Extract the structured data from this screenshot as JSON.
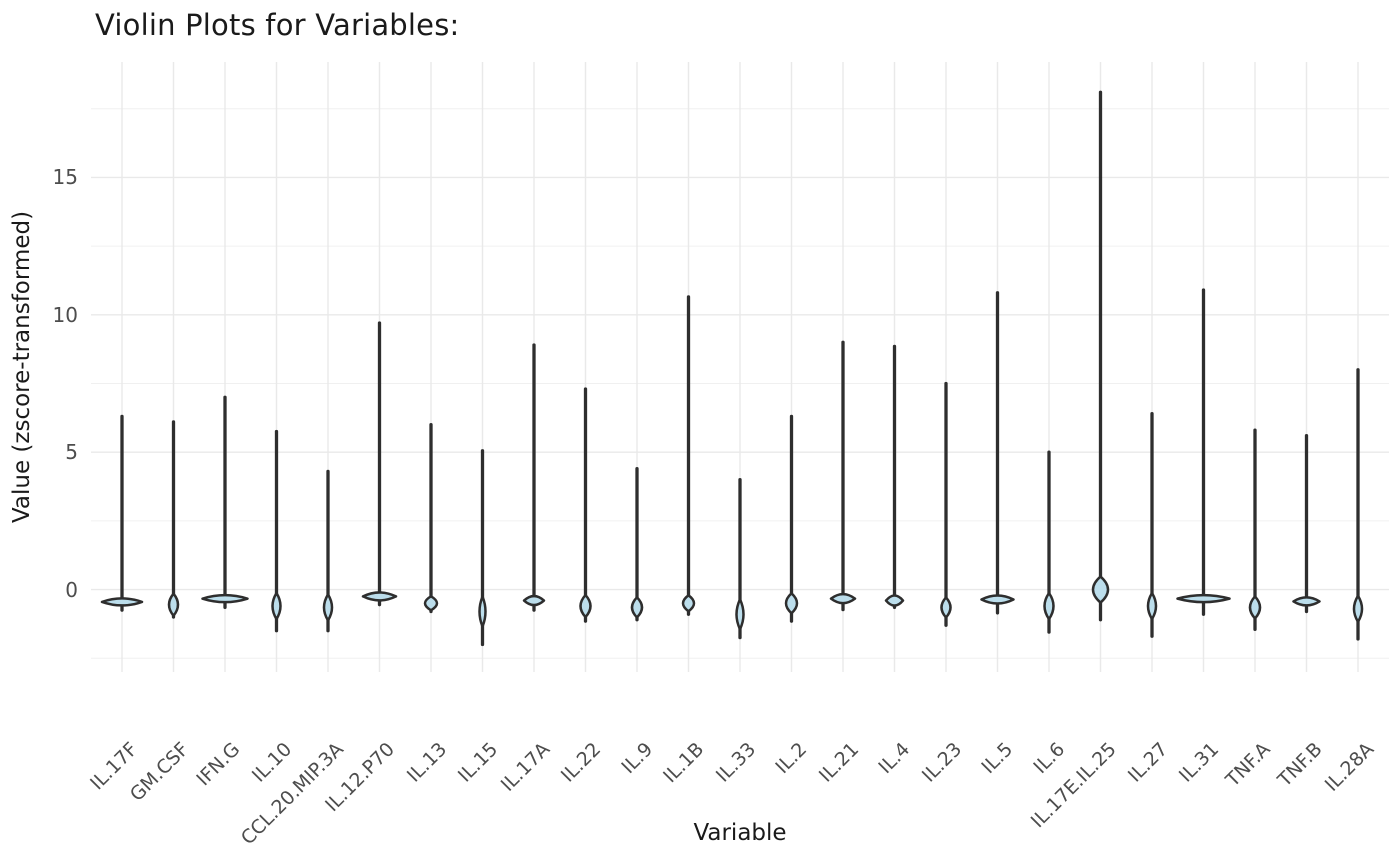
{
  "page": {
    "title": "Violin Plots for Variables:"
  },
  "colors": {
    "background": "#ffffff",
    "violin_outline": "#2e2e2e",
    "violin_fill": "#bcdeec",
    "grid_major": "#e9e9e9",
    "grid_minor": "#f0f0f0",
    "tick_label": "#4d4d4d",
    "axis_title": "#1a1a1a"
  },
  "chart_data": {
    "type": "violin",
    "title": "Violin Plots for Variables:",
    "xlabel": "Variable",
    "ylabel": "Value (zscore-transformed)",
    "ylim": [
      -3.0,
      19.2
    ],
    "yticks_major": [
      0,
      5,
      10,
      15
    ],
    "yticks_minor": [
      -2.5,
      2.5,
      7.5,
      12.5,
      17.5
    ],
    "grid": true,
    "legend": false,
    "x_label_angle_deg": 45,
    "categories": [
      "IL.17F",
      "GM.CSF",
      "IFN.G",
      "IL.10",
      "CCL.20.MIP.3A",
      "IL.12.P70",
      "IL.13",
      "IL.15",
      "IL.17A",
      "IL.22",
      "IL.9",
      "IL.1B",
      "IL.33",
      "IL.2",
      "IL.21",
      "IL.4",
      "IL.23",
      "IL.5",
      "IL.6",
      "IL.17E.IL.25",
      "IL.27",
      "IL.31",
      "TNF.A",
      "TNF.B",
      "IL.28A"
    ],
    "violins": [
      {
        "name": "IL.17F",
        "max": 6.3,
        "mode": -0.45,
        "min": -0.75,
        "bulge_w": 40,
        "bulge_h": 7
      },
      {
        "name": "GM.CSF",
        "max": 6.1,
        "mode": -0.55,
        "min": -1.0,
        "bulge_w": 9,
        "bulge_h": 22
      },
      {
        "name": "IFN.G",
        "max": 7.0,
        "mode": -0.33,
        "min": -0.65,
        "bulge_w": 45,
        "bulge_h": 7
      },
      {
        "name": "IL.10",
        "max": 5.75,
        "mode": -0.6,
        "min": -1.5,
        "bulge_w": 8,
        "bulge_h": 26
      },
      {
        "name": "CCL.20.MIP.3A",
        "max": 4.3,
        "mode": -0.65,
        "min": -1.5,
        "bulge_w": 8,
        "bulge_h": 26
      },
      {
        "name": "IL.12.P70",
        "max": 9.7,
        "mode": -0.25,
        "min": -0.55,
        "bulge_w": 33,
        "bulge_h": 8
      },
      {
        "name": "IL.13",
        "max": 6.0,
        "mode": -0.5,
        "min": -0.8,
        "bulge_w": 12,
        "bulge_h": 14
      },
      {
        "name": "IL.15",
        "max": 5.05,
        "mode": -0.8,
        "min": -2.0,
        "bulge_w": 6,
        "bulge_h": 30
      },
      {
        "name": "IL.17A",
        "max": 8.9,
        "mode": -0.4,
        "min": -0.75,
        "bulge_w": 20,
        "bulge_h": 9
      },
      {
        "name": "IL.22",
        "max": 7.3,
        "mode": -0.6,
        "min": -1.15,
        "bulge_w": 10,
        "bulge_h": 22
      },
      {
        "name": "IL.9",
        "max": 4.4,
        "mode": -0.65,
        "min": -1.1,
        "bulge_w": 10,
        "bulge_h": 20
      },
      {
        "name": "IL.1B",
        "max": 10.65,
        "mode": -0.5,
        "min": -0.9,
        "bulge_w": 11,
        "bulge_h": 16
      },
      {
        "name": "IL.33",
        "max": 4.0,
        "mode": -0.9,
        "min": -1.75,
        "bulge_w": 7,
        "bulge_h": 30
      },
      {
        "name": "IL.2",
        "max": 6.3,
        "mode": -0.5,
        "min": -1.15,
        "bulge_w": 11,
        "bulge_h": 20
      },
      {
        "name": "IL.21",
        "max": 9.0,
        "mode": -0.33,
        "min": -0.73,
        "bulge_w": 24,
        "bulge_h": 9
      },
      {
        "name": "IL.4",
        "max": 8.85,
        "mode": -0.4,
        "min": -0.65,
        "bulge_w": 17,
        "bulge_h": 10
      },
      {
        "name": "IL.23",
        "max": 7.5,
        "mode": -0.65,
        "min": -1.3,
        "bulge_w": 9,
        "bulge_h": 20
      },
      {
        "name": "IL.5",
        "max": 10.8,
        "mode": -0.36,
        "min": -0.85,
        "bulge_w": 32,
        "bulge_h": 8
      },
      {
        "name": "IL.6",
        "max": 5.0,
        "mode": -0.6,
        "min": -1.55,
        "bulge_w": 9,
        "bulge_h": 26
      },
      {
        "name": "IL.17E.IL.25",
        "max": 18.1,
        "mode": 0.0,
        "min": -1.1,
        "bulge_w": 15,
        "bulge_h": 26
      },
      {
        "name": "IL.27",
        "max": 6.4,
        "mode": -0.6,
        "min": -1.7,
        "bulge_w": 8,
        "bulge_h": 26
      },
      {
        "name": "IL.31",
        "max": 10.9,
        "mode": -0.33,
        "min": -0.9,
        "bulge_w": 52,
        "bulge_h": 7
      },
      {
        "name": "TNF.A",
        "max": 5.8,
        "mode": -0.65,
        "min": -1.45,
        "bulge_w": 10,
        "bulge_h": 22
      },
      {
        "name": "TNF.B",
        "max": 5.6,
        "mode": -0.43,
        "min": -0.8,
        "bulge_w": 26,
        "bulge_h": 8
      },
      {
        "name": "IL.28A",
        "max": 8.0,
        "mode": -0.7,
        "min": -1.8,
        "bulge_w": 8,
        "bulge_h": 26
      }
    ]
  }
}
